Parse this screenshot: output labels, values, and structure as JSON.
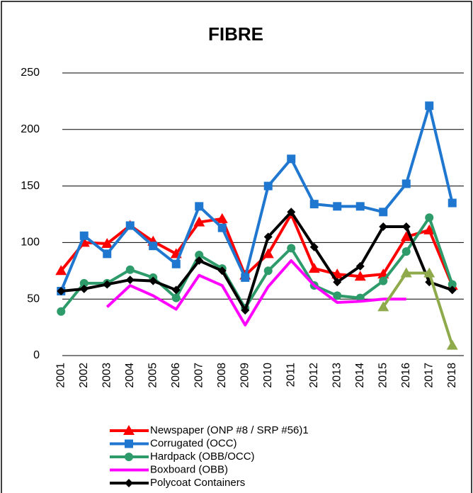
{
  "chart_data": {
    "type": "line",
    "title": "FIBRE",
    "categories": [
      "2001",
      "2002",
      "2003",
      "2004",
      "2005",
      "2006",
      "2007",
      "2008",
      "2009",
      "2010",
      "2011",
      "2012",
      "2013",
      "2014",
      "2015",
      "2016",
      "2017",
      "2018"
    ],
    "ylim": [
      0,
      250
    ],
    "yticks": [
      0,
      50,
      100,
      150,
      200,
      250
    ],
    "grid": true,
    "legend": "bottom",
    "series": [
      {
        "name": "Newspaper (ONP #8 / SRP #56)1",
        "color": "#ff0000",
        "marker": "triangle",
        "values": [
          75,
          100,
          99,
          115,
          101,
          90,
          118,
          121,
          71,
          90,
          125,
          77,
          72,
          70,
          72,
          105,
          111,
          62
        ]
      },
      {
        "name": "Corrugated (OCC)",
        "color": "#1f77d0",
        "marker": "square",
        "values": [
          57,
          106,
          90,
          115,
          97,
          81,
          132,
          113,
          69,
          150,
          174,
          134,
          132,
          132,
          127,
          152,
          221,
          135
        ]
      },
      {
        "name": "Hardpack (OBB/OCC)",
        "color": "#2e9b6a",
        "marker": "circle",
        "values": [
          39,
          64,
          64,
          76,
          69,
          51,
          89,
          77,
          42,
          75,
          95,
          62,
          53,
          51,
          66,
          92,
          122,
          63
        ]
      },
      {
        "name": "Boxboard (OBB)",
        "color": "#ff00ff",
        "marker": "none",
        "values": [
          null,
          null,
          43,
          62,
          53,
          41,
          71,
          62,
          27,
          61,
          84,
          62,
          47,
          48,
          50,
          50,
          null,
          null
        ]
      },
      {
        "name": "Polycoat Containers",
        "color": "#000000",
        "marker": "diamond",
        "values": [
          57,
          59,
          63,
          67,
          66,
          58,
          84,
          75,
          40,
          105,
          127,
          96,
          65,
          79,
          114,
          114,
          65,
          58
        ]
      },
      {
        "color": "#8faa4a",
        "marker": "triangle",
        "values": [
          null,
          null,
          null,
          null,
          null,
          null,
          null,
          null,
          null,
          null,
          null,
          null,
          null,
          null,
          43,
          73,
          73,
          9
        ]
      }
    ]
  }
}
